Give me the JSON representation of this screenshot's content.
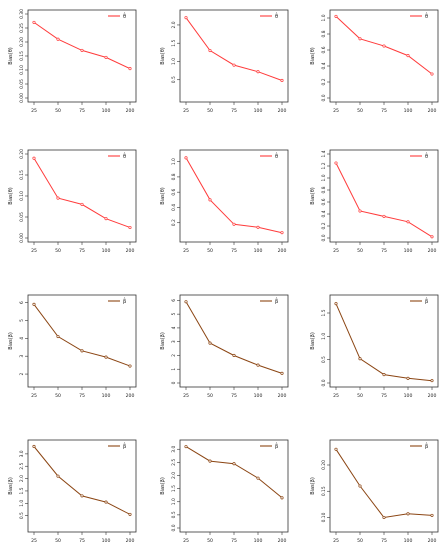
{
  "chart_data": [
    {
      "type": "line",
      "series": [
        {
          "name": "θ̂",
          "color": "#ff3b3b",
          "values": [
            0.27,
            0.21,
            0.17,
            0.145,
            0.105
          ]
        }
      ],
      "x": [
        25,
        50,
        75,
        100,
        200
      ],
      "ylabel": "Bias(θ)",
      "ylim": [
        0,
        0.3
      ],
      "yticks": [
        0,
        0.05,
        0.1,
        0.15,
        0.2,
        0.25,
        0.3
      ],
      "yticklabels": [
        "0.00",
        "0.05",
        "0.10",
        "0.15",
        "0.20",
        "0.25",
        "0.30"
      ],
      "xticklabels": [
        "25",
        "50",
        "75",
        "100",
        "200"
      ]
    },
    {
      "type": "line",
      "series": [
        {
          "name": "θ̂",
          "color": "#ff3b3b",
          "values": [
            2.2,
            1.3,
            0.9,
            0.72,
            0.48
          ]
        }
      ],
      "x": [
        25,
        50,
        75,
        100,
        200
      ],
      "ylabel": "Bias(θ)",
      "ylim": [
        0,
        2.3
      ],
      "yticks": [
        0.5,
        1.0,
        1.5,
        2.0
      ],
      "yticklabels": [
        "0.5",
        "1.0",
        "1.5",
        "2.0"
      ],
      "xticklabels": [
        "25",
        "50",
        "75",
        "100",
        "200"
      ]
    },
    {
      "type": "line",
      "series": [
        {
          "name": "θ̂",
          "color": "#ff3b3b",
          "values": [
            1.02,
            0.74,
            0.65,
            0.53,
            0.3
          ]
        }
      ],
      "x": [
        25,
        50,
        75,
        100,
        200
      ],
      "ylabel": "Bias(θ)",
      "ylim": [
        0,
        1.05
      ],
      "yticks": [
        0,
        0.2,
        0.4,
        0.6,
        0.8,
        1.0
      ],
      "yticklabels": [
        "0.0",
        "0.2",
        "0.4",
        "0.6",
        "0.8",
        "1.0"
      ],
      "xticklabels": [
        "25",
        "50",
        "75",
        "100",
        "200"
      ]
    },
    {
      "type": "line",
      "series": [
        {
          "name": "θ̂",
          "color": "#ff3b3b",
          "values": [
            0.19,
            0.095,
            0.08,
            0.046,
            0.025
          ]
        }
      ],
      "x": [
        25,
        50,
        75,
        100,
        200
      ],
      "ylabel": "Bias(θ)",
      "ylim": [
        0,
        0.2
      ],
      "yticks": [
        0,
        0.05,
        0.1,
        0.15,
        0.2
      ],
      "yticklabels": [
        "0.00",
        "0.05",
        "0.10",
        "0.15",
        "0.20"
      ],
      "xticklabels": [
        "25",
        "50",
        "75",
        "100",
        "200"
      ]
    },
    {
      "type": "line",
      "series": [
        {
          "name": "θ̂",
          "color": "#ff3b3b",
          "values": [
            1.05,
            0.5,
            0.18,
            0.14,
            0.07
          ]
        }
      ],
      "x": [
        25,
        50,
        75,
        100,
        200
      ],
      "ylabel": "Bias(θ)",
      "ylim": [
        0,
        1.1
      ],
      "yticks": [
        0.2,
        0.4,
        0.6,
        0.8,
        1.0
      ],
      "yticklabels": [
        "0.2",
        "0.4",
        "0.6",
        "0.8",
        "1.0"
      ],
      "xticklabels": [
        "25",
        "50",
        "75",
        "100",
        "200"
      ]
    },
    {
      "type": "line",
      "series": [
        {
          "name": "θ̂",
          "color": "#ff3b3b",
          "values": [
            1.25,
            0.45,
            0.36,
            0.27,
            0.02
          ]
        }
      ],
      "x": [
        25,
        50,
        75,
        100,
        200
      ],
      "ylabel": "Bias(θ)",
      "ylim": [
        0,
        1.4
      ],
      "yticks": [
        0,
        0.2,
        0.4,
        0.6,
        0.8,
        1.0,
        1.2,
        1.4
      ],
      "yticklabels": [
        "0.0",
        "0.2",
        "0.4",
        "0.6",
        "0.8",
        "1.0",
        "1.2",
        "1.4"
      ],
      "xticklabels": [
        "25",
        "50",
        "75",
        "100",
        "200"
      ]
    },
    {
      "type": "line",
      "series": [
        {
          "name": "β̂",
          "color": "#8b4513",
          "values": [
            5.9,
            4.1,
            3.3,
            2.95,
            2.45
          ]
        }
      ],
      "x": [
        25,
        50,
        75,
        100,
        200
      ],
      "ylabel": "Bias(β)",
      "ylim": [
        1.5,
        6.2
      ],
      "yticks": [
        2,
        3,
        4,
        5,
        6
      ],
      "yticklabels": [
        "2",
        "3",
        "4",
        "5",
        "6"
      ],
      "xticklabels": [
        "25",
        "50",
        "75",
        "100",
        "200"
      ]
    },
    {
      "type": "line",
      "series": [
        {
          "name": "β̂",
          "color": "#8b4513",
          "values": [
            5.9,
            2.9,
            2.0,
            1.3,
            0.7
          ]
        }
      ],
      "x": [
        25,
        50,
        75,
        100,
        200
      ],
      "ylabel": "Bias(β)",
      "ylim": [
        0,
        6.1
      ],
      "yticks": [
        0,
        1,
        2,
        3,
        4,
        5,
        6
      ],
      "yticklabels": [
        "0",
        "1",
        "2",
        "3",
        "4",
        "5",
        "6"
      ],
      "xticklabels": [
        "25",
        "50",
        "75",
        "100",
        "200"
      ]
    },
    {
      "type": "line",
      "series": [
        {
          "name": "β̂",
          "color": "#8b4513",
          "values": [
            1.7,
            0.52,
            0.18,
            0.1,
            0.05
          ]
        }
      ],
      "x": [
        25,
        50,
        75,
        100,
        200
      ],
      "ylabel": "Bias(β)",
      "ylim": [
        0,
        1.8
      ],
      "yticks": [
        0,
        0.5,
        1.0,
        1.5
      ],
      "yticklabels": [
        "0.0",
        "0.5",
        "1.0",
        "1.5"
      ],
      "xticklabels": [
        "25",
        "50",
        "75",
        "100",
        "200"
      ]
    },
    {
      "type": "line",
      "series": [
        {
          "name": "β̂",
          "color": "#8b4513",
          "values": [
            3.3,
            2.1,
            1.3,
            1.05,
            0.55
          ]
        }
      ],
      "x": [
        25,
        50,
        75,
        100,
        200
      ],
      "ylabel": "Bias(β)",
      "ylim": [
        0,
        3.4
      ],
      "yticks": [
        0.5,
        1.0,
        1.5,
        2.0,
        2.5,
        3.0
      ],
      "yticklabels": [
        "0.5",
        "1.0",
        "1.5",
        "2.0",
        "2.5",
        "3.0"
      ],
      "xticklabels": [
        "25",
        "50",
        "75",
        "100",
        "200"
      ]
    },
    {
      "type": "line",
      "series": [
        {
          "name": "β̂",
          "color": "#8b4513",
          "values": [
            3.1,
            2.55,
            2.45,
            1.9,
            1.15
          ]
        }
      ],
      "x": [
        25,
        50,
        75,
        100,
        200
      ],
      "ylabel": "Bias(β)",
      "ylim": [
        0,
        3.2
      ],
      "yticks": [
        0,
        0.5,
        1.0,
        1.5,
        2.0,
        2.5,
        3.0
      ],
      "yticklabels": [
        "0.0",
        "0.5",
        "1.0",
        "1.5",
        "2.0",
        "2.5",
        "3.0"
      ],
      "xticklabels": [
        "25",
        "50",
        "75",
        "100",
        "200"
      ]
    },
    {
      "type": "line",
      "series": [
        {
          "name": "β̂",
          "color": "#8b4513",
          "values": [
            0.23,
            0.16,
            0.1,
            0.107,
            0.104
          ]
        }
      ],
      "x": [
        25,
        50,
        75,
        100,
        200
      ],
      "ylabel": "Bias(β)",
      "ylim": [
        0.08,
        0.24
      ],
      "yticks": [
        0.1,
        0.15,
        0.2
      ],
      "yticklabels": [
        "0.10",
        "0.15",
        "0.20"
      ],
      "xticklabels": [
        "25",
        "50",
        "75",
        "100",
        "200"
      ]
    }
  ]
}
